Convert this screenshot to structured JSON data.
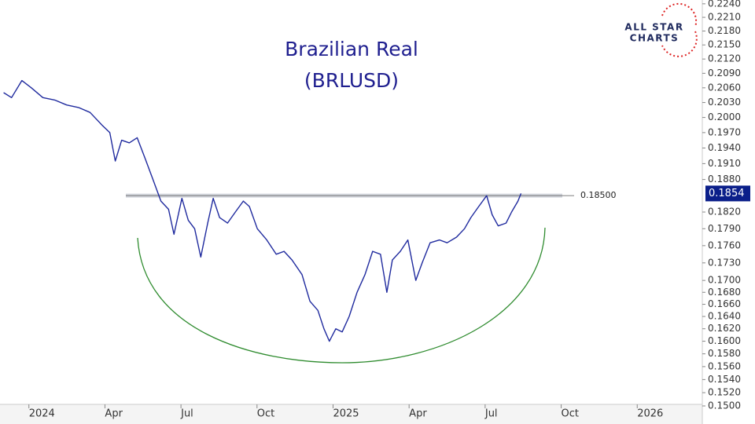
{
  "chart_data": {
    "type": "line",
    "title": "Brazilian Real",
    "subtitle": "(BRLUSD)",
    "logo": {
      "line1": "ALL STAR",
      "line2": "CHARTS"
    },
    "log_scale": true,
    "grid": false,
    "xlim": [
      2023.905,
      2026.214
    ],
    "xticks": [
      2024,
      {
        "value": 2024.25,
        "label": "Apr"
      },
      {
        "value": 2024.5,
        "label": "Jul"
      },
      {
        "value": 2024.75,
        "label": "Oct"
      },
      2025,
      {
        "value": 2025.25,
        "label": "Apr"
      },
      {
        "value": 2025.5,
        "label": "Jul"
      },
      {
        "value": 2025.75,
        "label": "Oct"
      },
      2026
    ],
    "ylim": [
      0.15,
      0.2245
    ],
    "yticks": [
      {
        "value": 0.224,
        "label": "0.2240"
      },
      {
        "value": 0.221,
        "label": "0.2210"
      },
      {
        "value": 0.218,
        "label": "0.2180"
      },
      {
        "value": 0.215,
        "label": "0.2150"
      },
      {
        "value": 0.212,
        "label": "0.2120"
      },
      {
        "value": 0.209,
        "label": "0.2090"
      },
      {
        "value": 0.206,
        "label": "0.2060"
      },
      {
        "value": 0.203,
        "label": "0.2030"
      },
      {
        "value": 0.2,
        "label": "0.2000"
      },
      {
        "value": 0.197,
        "label": "0.1970"
      },
      {
        "value": 0.194,
        "label": "0.1940"
      },
      {
        "value": 0.191,
        "label": "0.1910"
      },
      {
        "value": 0.188,
        "label": "0.1880"
      },
      {
        "value": 0.182,
        "label": "0.1820"
      },
      {
        "value": 0.179,
        "label": "0.1790"
      },
      {
        "value": 0.176,
        "label": "0.1760"
      },
      {
        "value": 0.173,
        "label": "0.1730"
      },
      {
        "value": 0.17,
        "label": "0.1700"
      },
      {
        "value": 0.168,
        "label": "0.1680"
      },
      {
        "value": 0.166,
        "label": "0.1660"
      },
      {
        "value": 0.164,
        "label": "0.1640"
      },
      {
        "value": 0.162,
        "label": "0.1620"
      },
      {
        "value": 0.16,
        "label": "0.1600"
      },
      {
        "value": 0.158,
        "label": "0.1580"
      },
      {
        "value": 0.156,
        "label": "0.1560"
      },
      {
        "value": 0.154,
        "label": "0.1540"
      },
      {
        "value": 0.152,
        "label": "0.1520"
      },
      {
        "value": 0.15,
        "label": "0.1500"
      }
    ],
    "hline": {
      "value": 0.185,
      "label": "0.18500"
    },
    "x": [
      2023.917,
      2023.943,
      2023.977,
      2024.008,
      2024.046,
      2024.085,
      2024.124,
      2024.163,
      2024.201,
      2024.24,
      2024.266,
      2024.284,
      2024.305,
      2024.33,
      2024.356,
      2024.382,
      2024.408,
      2024.434,
      2024.459,
      2024.477,
      2024.503,
      2024.524,
      2024.545,
      2024.565,
      2024.588,
      2024.606,
      2024.627,
      2024.653,
      2024.679,
      2024.705,
      2024.725,
      2024.751,
      2024.782,
      2024.813,
      2024.839,
      2024.865,
      2024.898,
      2024.924,
      2024.95,
      2024.97,
      2024.988,
      2025.009,
      2025.03,
      2025.053,
      2025.079,
      2025.105,
      2025.13,
      2025.156,
      2025.177,
      2025.195,
      2025.221,
      2025.246,
      2025.272,
      2025.293,
      2025.319,
      2025.35,
      2025.375,
      2025.406,
      2025.432,
      2025.453,
      2025.479,
      2025.505,
      2025.523,
      2025.543,
      2025.569,
      2025.587,
      2025.608,
      2025.618
    ],
    "series": [
      {
        "color": "#1f2a9e",
        "values": [
          0.205,
          0.204,
          0.2075,
          0.206,
          0.204,
          0.2035,
          0.2025,
          0.202,
          0.201,
          0.1985,
          0.197,
          0.1915,
          0.1955,
          0.195,
          0.196,
          0.192,
          0.188,
          0.184,
          0.1825,
          0.178,
          0.1845,
          0.1805,
          0.179,
          0.174,
          0.18,
          0.1845,
          0.181,
          0.18,
          0.182,
          0.184,
          0.183,
          0.179,
          0.177,
          0.1745,
          0.175,
          0.1735,
          0.171,
          0.1665,
          0.165,
          0.162,
          0.16,
          0.162,
          0.1615,
          0.164,
          0.168,
          0.171,
          0.175,
          0.1745,
          0.168,
          0.1735,
          0.175,
          0.177,
          0.17,
          0.173,
          0.1765,
          0.177,
          0.1765,
          0.1775,
          0.179,
          0.181,
          0.183,
          0.185,
          0.1815,
          0.1795,
          0.18,
          0.182,
          0.184,
          0.1854
        ]
      }
    ]
  }
}
